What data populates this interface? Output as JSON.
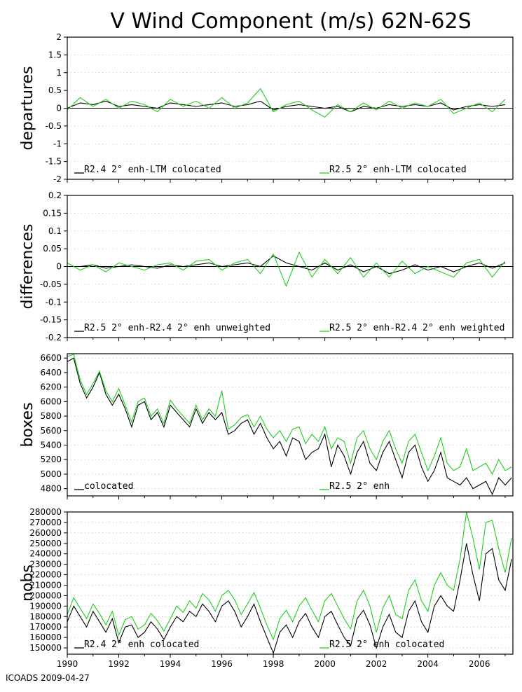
{
  "title": "V Wind Component (m/s) 62N-62S",
  "footer": "ICOADS 2009-04-27",
  "colors": {
    "black": "#000000",
    "green": "#22cc22",
    "grid": "#9a9a9a"
  },
  "chart_data": [
    {
      "type": "line",
      "ylabel": "departures",
      "ylim": [
        -2,
        2
      ],
      "yticks": [
        "2",
        "1.5",
        "1",
        "0.5",
        "0",
        "-0.5",
        "-1",
        "-1.5",
        "-2"
      ],
      "xlim": [
        1990,
        2007.3
      ],
      "zero_line": true,
      "series": [
        {
          "name": "R2.4 2° enh-LTM colocated",
          "color": "#000000",
          "x": [
            1990.0,
            1990.5,
            1991.0,
            1991.5,
            1992.0,
            1992.5,
            1993.0,
            1993.5,
            1994.0,
            1994.5,
            1995.0,
            1995.5,
            1996.0,
            1996.5,
            1997.0,
            1997.5,
            1998.0,
            1998.5,
            1999.0,
            1999.5,
            2000.0,
            2000.5,
            2001.0,
            2001.5,
            2002.0,
            2002.5,
            2003.0,
            2003.5,
            2004.0,
            2004.5,
            2005.0,
            2005.5,
            2006.0,
            2006.5,
            2007.0
          ],
          "values": [
            0.0,
            0.15,
            0.1,
            0.2,
            0.05,
            0.1,
            0.05,
            0.0,
            0.15,
            0.1,
            0.05,
            0.1,
            0.15,
            0.05,
            0.1,
            0.2,
            -0.05,
            0.05,
            0.1,
            0.05,
            0.0,
            0.05,
            -0.1,
            0.05,
            0.0,
            0.1,
            0.05,
            0.1,
            0.05,
            0.15,
            -0.05,
            0.05,
            0.1,
            0.05,
            0.1
          ]
        },
        {
          "name": "R2.5 2° enh-LTM colocated",
          "color": "#22cc22",
          "x": [
            1990.0,
            1990.5,
            1991.0,
            1991.5,
            1992.0,
            1992.5,
            1993.0,
            1993.5,
            1994.0,
            1994.5,
            1995.0,
            1995.5,
            1996.0,
            1996.5,
            1997.0,
            1997.5,
            1998.0,
            1998.5,
            1999.0,
            1999.5,
            2000.0,
            2000.5,
            2001.0,
            2001.5,
            2002.0,
            2002.5,
            2003.0,
            2003.5,
            2004.0,
            2004.5,
            2005.0,
            2005.5,
            2006.0,
            2006.5,
            2007.0
          ],
          "values": [
            -0.05,
            0.3,
            0.05,
            0.25,
            0.0,
            0.2,
            0.1,
            -0.1,
            0.25,
            0.05,
            0.2,
            0.0,
            0.3,
            0.0,
            0.15,
            0.55,
            -0.1,
            0.1,
            0.2,
            -0.05,
            -0.25,
            0.1,
            -0.1,
            0.15,
            -0.05,
            0.2,
            0.0,
            0.15,
            0.05,
            0.25,
            -0.15,
            0.0,
            0.15,
            -0.1,
            0.25
          ]
        }
      ]
    },
    {
      "type": "line",
      "ylabel": "differences",
      "ylim": [
        -0.2,
        0.2
      ],
      "yticks": [
        "0.2",
        "0.15",
        "0.1",
        "0.05",
        "0",
        "-0.05",
        "-0.1",
        "-0.15",
        "-0.2"
      ],
      "xlim": [
        1990,
        2007.3
      ],
      "zero_line": true,
      "series": [
        {
          "name": "R2.5 2° enh-R2.4 2° enh unweighted",
          "color": "#000000",
          "x": [
            1990.0,
            1990.5,
            1991.0,
            1991.5,
            1992.0,
            1992.5,
            1993.0,
            1993.5,
            1994.0,
            1994.5,
            1995.0,
            1995.5,
            1996.0,
            1996.5,
            1997.0,
            1997.5,
            1998.0,
            1998.5,
            1999.0,
            1999.5,
            2000.0,
            2000.5,
            2001.0,
            2001.5,
            2002.0,
            2002.5,
            2003.0,
            2003.5,
            2004.0,
            2004.5,
            2005.0,
            2005.5,
            2006.0,
            2006.5,
            2007.0
          ],
          "values": [
            0.0,
            0.0,
            0.005,
            -0.005,
            0.0,
            0.005,
            0.0,
            -0.005,
            0.005,
            0.0,
            0.005,
            0.01,
            0.0,
            0.005,
            0.01,
            0.0,
            0.03,
            0.01,
            0.0,
            -0.01,
            0.01,
            -0.01,
            0.005,
            -0.015,
            0.0,
            -0.02,
            -0.01,
            0.005,
            -0.01,
            0.0,
            -0.015,
            0.0,
            0.01,
            -0.005,
            0.01
          ]
        },
        {
          "name": "R2.5 2° enh-R2.4 2° enh weighted",
          "color": "#22cc22",
          "x": [
            1990.0,
            1990.5,
            1991.0,
            1991.5,
            1992.0,
            1992.5,
            1993.0,
            1993.5,
            1994.0,
            1994.5,
            1995.0,
            1995.5,
            1996.0,
            1996.5,
            1997.0,
            1997.5,
            1998.0,
            1998.5,
            1999.0,
            1999.5,
            2000.0,
            2000.5,
            2001.0,
            2001.5,
            2002.0,
            2002.5,
            2003.0,
            2003.5,
            2004.0,
            2004.5,
            2005.0,
            2005.5,
            2006.0,
            2006.5,
            2007.0
          ],
          "values": [
            0.01,
            -0.01,
            0.005,
            -0.015,
            0.01,
            0.0,
            -0.01,
            0.005,
            0.01,
            -0.01,
            0.015,
            0.02,
            -0.01,
            0.01,
            0.02,
            -0.02,
            0.035,
            -0.055,
            0.04,
            -0.03,
            0.02,
            -0.02,
            0.025,
            -0.03,
            0.01,
            -0.03,
            0.015,
            -0.02,
            0.0,
            -0.015,
            -0.03,
            0.01,
            0.02,
            -0.03,
            0.015
          ]
        }
      ]
    },
    {
      "type": "line",
      "ylabel": "boxes",
      "ylim": [
        4700,
        6660
      ],
      "yticks": [
        "6600",
        "6400",
        "6200",
        "6000",
        "5800",
        "5600",
        "5400",
        "5200",
        "5000",
        "4800"
      ],
      "xlim": [
        1990,
        2007.3
      ],
      "zero_line": false,
      "series": [
        {
          "name": "colocated",
          "color": "#000000",
          "x": [
            1990.0,
            1990.25,
            1990.5,
            1990.75,
            1991.0,
            1991.25,
            1991.5,
            1991.75,
            1992.0,
            1992.25,
            1992.5,
            1992.75,
            1993.0,
            1993.25,
            1993.5,
            1993.75,
            1994.0,
            1994.25,
            1994.5,
            1994.75,
            1995.0,
            1995.25,
            1995.5,
            1995.75,
            1996.0,
            1996.25,
            1996.5,
            1996.75,
            1997.0,
            1997.25,
            1997.5,
            1997.75,
            1998.0,
            1998.25,
            1998.5,
            1998.75,
            1999.0,
            1999.25,
            1999.5,
            1999.75,
            2000.0,
            2000.25,
            2000.5,
            2000.75,
            2001.0,
            2001.25,
            2001.5,
            2001.75,
            2002.0,
            2002.25,
            2002.5,
            2002.75,
            2003.0,
            2003.25,
            2003.5,
            2003.75,
            2004.0,
            2004.25,
            2004.5,
            2004.75,
            2005.0,
            2005.25,
            2005.5,
            2005.75,
            2006.0,
            2006.25,
            2006.5,
            2006.75,
            2007.0,
            2007.25
          ],
          "values": [
            6550,
            6600,
            6250,
            6050,
            6200,
            6400,
            6100,
            5950,
            6100,
            5900,
            5650,
            5950,
            6000,
            5750,
            5850,
            5650,
            5950,
            5850,
            5750,
            5650,
            5900,
            5700,
            5850,
            5750,
            5850,
            5550,
            5600,
            5700,
            5750,
            5550,
            5700,
            5500,
            5350,
            5450,
            5250,
            5500,
            5450,
            5200,
            5300,
            5350,
            5550,
            5100,
            5400,
            5250,
            5000,
            5300,
            5450,
            5150,
            5050,
            5300,
            5450,
            5200,
            4950,
            5300,
            5400,
            5100,
            4900,
            5050,
            5300,
            4950,
            4900,
            4850,
            4950,
            4800,
            4850,
            4900,
            4720,
            4950,
            4850,
            4950
          ]
        },
        {
          "name": "R2.5 2° enh",
          "color": "#22cc22",
          "x": [
            1990.0,
            1990.25,
            1990.5,
            1990.75,
            1991.0,
            1991.25,
            1991.5,
            1991.75,
            1992.0,
            1992.25,
            1992.5,
            1992.75,
            1993.0,
            1993.25,
            1993.5,
            1993.75,
            1994.0,
            1994.25,
            1994.5,
            1994.75,
            1995.0,
            1995.25,
            1995.5,
            1995.75,
            1996.0,
            1996.25,
            1996.5,
            1996.75,
            1997.0,
            1997.25,
            1997.5,
            1997.75,
            1998.0,
            1998.25,
            1998.5,
            1998.75,
            1999.0,
            1999.25,
            1999.5,
            1999.75,
            2000.0,
            2000.25,
            2000.5,
            2000.75,
            2001.0,
            2001.25,
            2001.5,
            2001.75,
            2002.0,
            2002.25,
            2002.5,
            2002.75,
            2003.0,
            2003.25,
            2003.5,
            2003.75,
            2004.0,
            2004.25,
            2004.5,
            2004.75,
            2005.0,
            2005.25,
            2005.5,
            2005.75,
            2006.0,
            2006.25,
            2006.5,
            2006.75,
            2007.0,
            2007.25
          ],
          "values": [
            6620,
            6650,
            6300,
            6100,
            6250,
            6420,
            6150,
            6000,
            6180,
            5950,
            5720,
            6000,
            6050,
            5800,
            5900,
            5700,
            6020,
            5900,
            5800,
            5700,
            5950,
            5750,
            5900,
            5800,
            6150,
            5620,
            5680,
            5780,
            5820,
            5650,
            5800,
            5620,
            5500,
            5600,
            5450,
            5620,
            5650,
            5420,
            5550,
            5450,
            5650,
            5350,
            5500,
            5450,
            5150,
            5500,
            5600,
            5350,
            5200,
            5450,
            5600,
            5350,
            5150,
            5450,
            5550,
            5300,
            5050,
            5250,
            5500,
            5150,
            5050,
            5100,
            5350,
            5050,
            5100,
            5150,
            5000,
            5200,
            5050,
            5100
          ]
        }
      ]
    },
    {
      "type": "line",
      "ylabel": "nobs",
      "ylim": [
        144000,
        280000
      ],
      "yticks": [
        "280000",
        "270000",
        "260000",
        "250000",
        "240000",
        "230000",
        "220000",
        "210000",
        "200000",
        "190000",
        "180000",
        "170000",
        "160000",
        "150000"
      ],
      "xlim": [
        1990,
        2007.3
      ],
      "xticks": [
        "1990",
        "1992",
        "1994",
        "1996",
        "1998",
        "2000",
        "2002",
        "2004",
        "2006"
      ],
      "zero_line": false,
      "series": [
        {
          "name": "R2.4 2° enh colocated",
          "color": "#000000",
          "x": [
            1990.0,
            1990.25,
            1990.5,
            1990.75,
            1991.0,
            1991.25,
            1991.5,
            1991.75,
            1992.0,
            1992.25,
            1992.5,
            1992.75,
            1993.0,
            1993.25,
            1993.5,
            1993.75,
            1994.0,
            1994.25,
            1994.5,
            1994.75,
            1995.0,
            1995.25,
            1995.5,
            1995.75,
            1996.0,
            1996.25,
            1996.5,
            1996.75,
            1997.0,
            1997.25,
            1997.5,
            1997.75,
            1998.0,
            1998.25,
            1998.5,
            1998.75,
            1999.0,
            1999.25,
            1999.5,
            1999.75,
            2000.0,
            2000.25,
            2000.5,
            2000.75,
            2001.0,
            2001.25,
            2001.5,
            2001.75,
            2002.0,
            2002.25,
            2002.5,
            2002.75,
            2003.0,
            2003.25,
            2003.5,
            2003.75,
            2004.0,
            2004.25,
            2004.5,
            2004.75,
            2005.0,
            2005.25,
            2005.5,
            2005.75,
            2006.0,
            2006.25,
            2006.5,
            2006.75,
            2007.0,
            2007.25
          ],
          "values": [
            175000,
            190000,
            180000,
            170000,
            185000,
            175000,
            165000,
            178000,
            155000,
            170000,
            172000,
            160000,
            165000,
            175000,
            168000,
            158000,
            170000,
            180000,
            175000,
            185000,
            180000,
            192000,
            185000,
            175000,
            190000,
            195000,
            185000,
            170000,
            180000,
            192000,
            175000,
            160000,
            145000,
            165000,
            172000,
            160000,
            175000,
            183000,
            170000,
            160000,
            180000,
            185000,
            172000,
            160000,
            152000,
            178000,
            186000,
            172000,
            150000,
            170000,
            182000,
            165000,
            160000,
            185000,
            195000,
            175000,
            165000,
            190000,
            200000,
            190000,
            185000,
            215000,
            250000,
            220000,
            195000,
            240000,
            245000,
            215000,
            205000,
            235000
          ]
        },
        {
          "name": "R2.5 2° enh colocated",
          "color": "#22cc22",
          "x": [
            1990.0,
            1990.25,
            1990.5,
            1990.75,
            1991.0,
            1991.25,
            1991.5,
            1991.75,
            1992.0,
            1992.25,
            1992.5,
            1992.75,
            1993.0,
            1993.25,
            1993.5,
            1993.75,
            1994.0,
            1994.25,
            1994.5,
            1994.75,
            1995.0,
            1995.25,
            1995.5,
            1995.75,
            1996.0,
            1996.25,
            1996.5,
            1996.75,
            1997.0,
            1997.25,
            1997.5,
            1997.75,
            1998.0,
            1998.25,
            1998.5,
            1998.75,
            1999.0,
            1999.25,
            1999.5,
            1999.75,
            2000.0,
            2000.25,
            2000.5,
            2000.75,
            2001.0,
            2001.25,
            2001.5,
            2001.75,
            2002.0,
            2002.25,
            2002.5,
            2002.75,
            2003.0,
            2003.25,
            2003.5,
            2003.75,
            2004.0,
            2004.25,
            2004.5,
            2004.75,
            2005.0,
            2005.25,
            2005.5,
            2005.75,
            2006.0,
            2006.25,
            2006.5,
            2006.75,
            2007.0,
            2007.25
          ],
          "values": [
            182000,
            198000,
            188000,
            178000,
            192000,
            183000,
            172000,
            185000,
            162000,
            177000,
            180000,
            168000,
            172000,
            183000,
            176000,
            166000,
            178000,
            190000,
            184000,
            195000,
            188000,
            202000,
            196000,
            185000,
            200000,
            205000,
            196000,
            182000,
            192000,
            203000,
            188000,
            172000,
            158000,
            178000,
            186000,
            175000,
            190000,
            198000,
            186000,
            175000,
            195000,
            202000,
            190000,
            178000,
            168000,
            195000,
            205000,
            190000,
            165000,
            188000,
            200000,
            182000,
            178000,
            205000,
            215000,
            195000,
            185000,
            210000,
            222000,
            210000,
            205000,
            235000,
            280000,
            255000,
            225000,
            270000,
            272000,
            245000,
            222000,
            255000
          ]
        }
      ]
    }
  ]
}
